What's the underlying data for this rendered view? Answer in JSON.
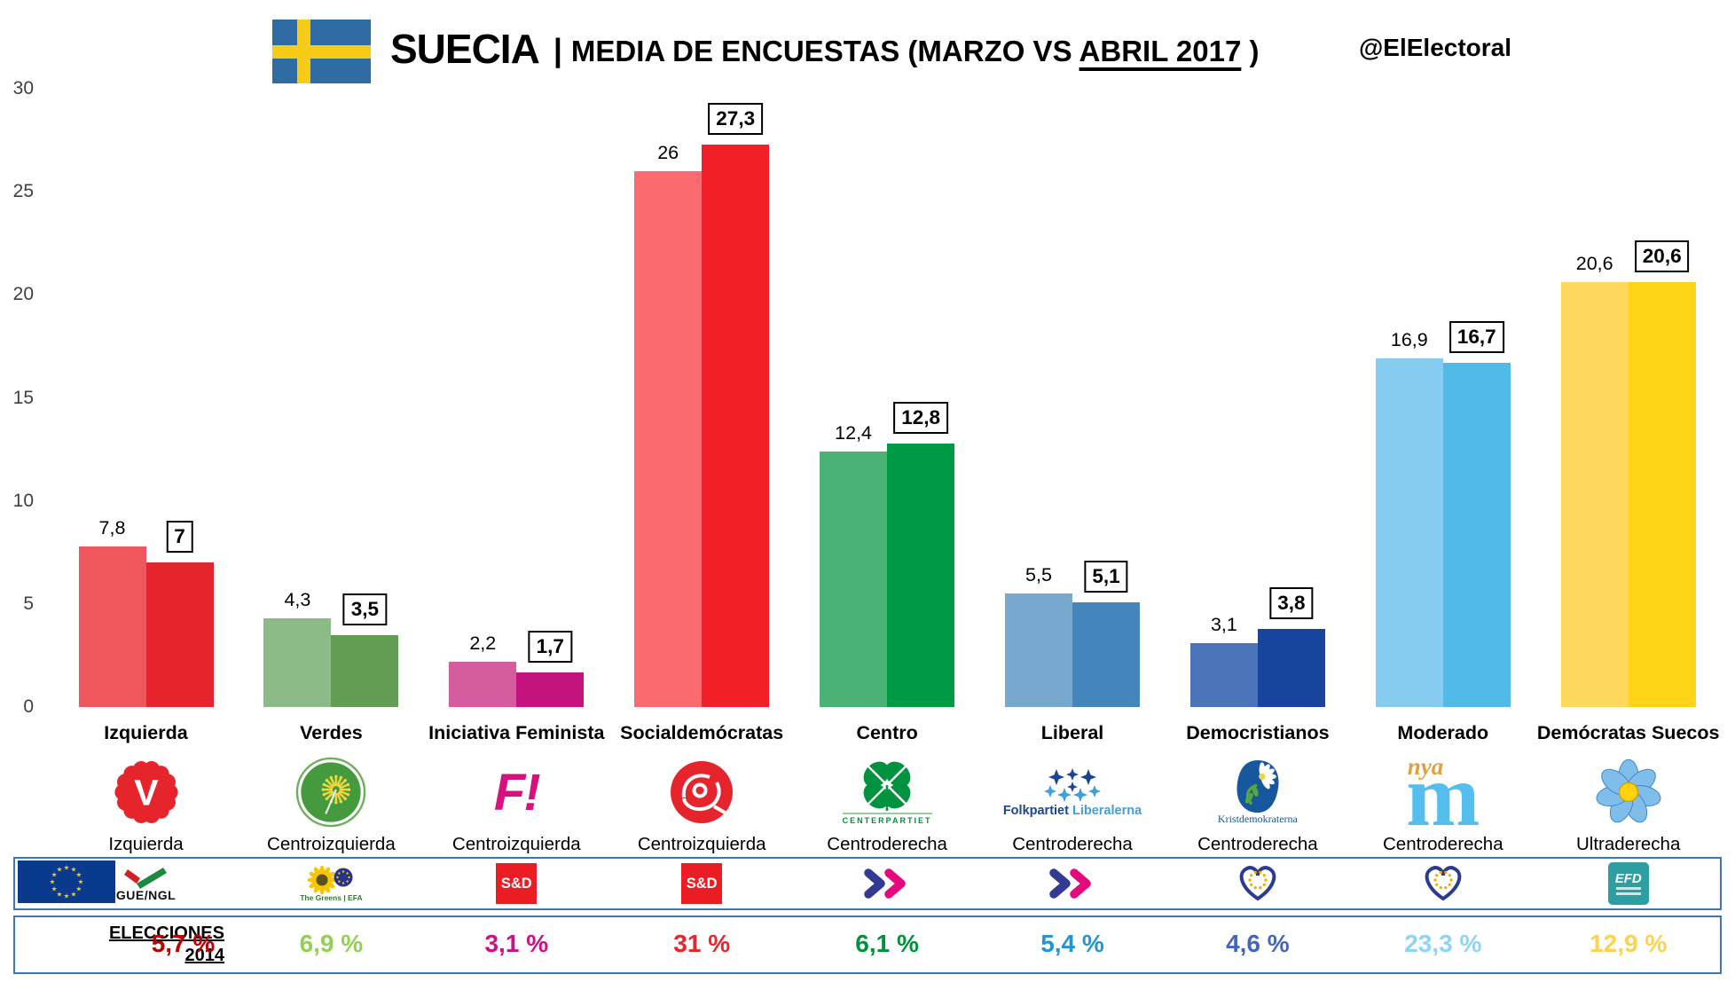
{
  "header": {
    "country": "SUECIA",
    "sep": "|",
    "subtitle_prefix": "MEDIA DE ENCUESTAS (MARZO VS ",
    "subtitle_underline": "ABRIL 2017",
    "subtitle_suffix": " )",
    "handle": "@ElElectoral"
  },
  "chart_data": {
    "type": "bar",
    "title": "SUECIA | MEDIA DE ENCUESTAS (MARZO VS ABRIL 2017)",
    "xlabel": "",
    "ylabel": "",
    "ylim": [
      0,
      30
    ],
    "yticks": [
      0,
      5,
      10,
      15,
      20,
      25,
      30
    ],
    "grid": false,
    "legend_position": "none",
    "series_names": [
      "Marzo 2017",
      "Abril 2017"
    ],
    "groups": [
      {
        "party": "Izquierda",
        "position": "Izquierda",
        "marzo": 7.8,
        "abril": 7,
        "marzo_label": "7,8",
        "abril_label": "7",
        "marzo_color": "#F0575C",
        "abril_color": "#E7232B",
        "logo_icon": "vansterpartiet-v-flower-icon",
        "logo_letter": "V",
        "eu_group_icon": "gue-ngl-group-logo-icon",
        "elections_2014": "5,7 %",
        "elections_color": "#C00000"
      },
      {
        "party": "Verdes",
        "position": "Centroizquierda",
        "marzo": 4.3,
        "abril": 3.5,
        "marzo_label": "4,3",
        "abril_label": "3,5",
        "marzo_color": "#8DBB87",
        "abril_color": "#619E53",
        "logo_icon": "miljopartiet-dandelion-icon",
        "eu_group_icon": "greens-efa-group-logo-icon",
        "elections_2014": "6,9 %",
        "elections_color": "#92D050"
      },
      {
        "party": "Iniciativa Feminista",
        "position": "Centroizquierda",
        "marzo": 2.2,
        "abril": 1.7,
        "marzo_label": "2,2",
        "abril_label": "1,7",
        "marzo_color": "#D55C9F",
        "abril_color": "#C4137F",
        "logo_icon": "feminist-initiative-f-icon",
        "logo_letter": "F!",
        "eu_group_icon": "sd-group-logo-icon",
        "elections_2014": "3,1 %",
        "elections_color": "#CC1186"
      },
      {
        "party": "Socialdemócratas",
        "position": "Centroizquierda",
        "marzo": 26,
        "abril": 27.3,
        "marzo_label": "26",
        "abril_label": "27,3",
        "marzo_color": "#FA6A6E",
        "abril_color": "#F12028",
        "logo_icon": "socialdemokraterna-rose-icon",
        "eu_group_icon": "sd-group-logo-icon",
        "elections_2014": "31 %",
        "elections_color": "#EE2228"
      },
      {
        "party": "Centro",
        "position": "Centroderecha",
        "marzo": 12.4,
        "abril": 12.8,
        "marzo_label": "12,4",
        "abril_label": "12,8",
        "marzo_color": "#4AB274",
        "abril_color": "#009A44",
        "logo_icon": "centerpartiet-clover-icon",
        "logo_caption": "CENTERPARTIET",
        "eu_group_icon": "alde-group-logo-icon",
        "elections_2014": "6,1 %",
        "elections_color": "#00913C"
      },
      {
        "party": "Liberal",
        "position": "Centroderecha",
        "marzo": 5.5,
        "abril": 5.1,
        "marzo_label": "5,5",
        "abril_label": "5,1",
        "marzo_color": "#77A9CE",
        "abril_color": "#4486BC",
        "logo_icon": "folkpartiet-cornflower-icon",
        "logo_caption": "Folkpartiet Liberalerna",
        "eu_group_icon": "alde-group-logo-icon",
        "elections_2014": "5,4 %",
        "elections_color": "#2394D2"
      },
      {
        "party": "Democristianos",
        "position": "Centroderecha",
        "marzo": 3.1,
        "abril": 3.8,
        "marzo_label": "3,1",
        "abril_label": "3,8",
        "marzo_color": "#4B73B8",
        "abril_color": "#17449D",
        "logo_icon": "kristdemokraterna-daisy-icon",
        "logo_caption": "Kristdemokraterna",
        "eu_group_icon": "epp-heart-logo-icon",
        "elections_2014": "4,6 %",
        "elections_color": "#4466B8"
      },
      {
        "party": "Moderado",
        "position": "Centroderecha",
        "marzo": 16.9,
        "abril": 16.7,
        "marzo_label": "16,9",
        "abril_label": "16,7",
        "marzo_color": "#85CCF0",
        "abril_color": "#50BAE9",
        "logo_icon": "moderaterna-nya-m-icon",
        "logo_letter": "m",
        "logo_caption": "nya",
        "eu_group_icon": "epp-heart-logo-icon",
        "elections_2014": "23,3 %",
        "elections_color": "#8FD3F5"
      },
      {
        "party": "Demócratas Suecos",
        "position": "Ultraderecha",
        "marzo": 20.6,
        "abril": 20.6,
        "marzo_label": "20,6",
        "abril_label": "20,6",
        "marzo_color": "#FFD95E",
        "abril_color": "#FFD416",
        "logo_icon": "sverigedemokraterna-anemone-icon",
        "eu_group_icon": "efd-group-logo-icon",
        "elections_2014": "12,9 %",
        "elections_color": "#FFD24D"
      }
    ]
  },
  "eu_row": {
    "gue_label": "GUE/NGL",
    "greens_label": "The Greens | EFA",
    "sd_label": "S&D",
    "efd_label": "EFD"
  },
  "elections": {
    "label_line1": "ELECCIONES",
    "label_line2": "2014"
  }
}
